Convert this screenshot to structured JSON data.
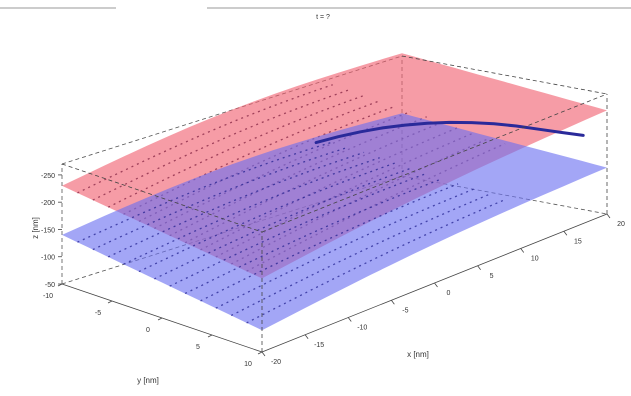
{
  "chart_data": {
    "type": "surface3d",
    "title": "t = ?",
    "xlabel": "y [nm]",
    "ylabel": "x [nm]",
    "zlabel": "z [nm]",
    "y_ticks": [
      "-10",
      "-5",
      "0",
      "5",
      "10"
    ],
    "x_ticks": [
      "-20",
      "-15",
      "-10",
      "-5",
      "0",
      "5",
      "10",
      "15",
      "20"
    ],
    "z_ticks": [
      "-50",
      "-100",
      "-150",
      "-200",
      "-250"
    ],
    "series": [
      {
        "name": "",
        "kind": "surface",
        "color": "#f06070",
        "opacity": 0.62,
        "z_corners": {
          "back_left": -230,
          "back_right": -275,
          "front_left": -185,
          "front_right": -240
        }
      },
      {
        "name": "",
        "kind": "surface",
        "color": "#6a70f0",
        "opacity": 0.62,
        "z_corners": {
          "back_left": -140,
          "back_right": -165,
          "front_left": -90,
          "front_right": -135
        }
      },
      {
        "name": "",
        "kind": "trajectory",
        "color": "#2a2a9a",
        "x": [
          -2,
          0,
          2,
          4,
          6,
          8,
          10,
          12,
          14,
          16,
          18,
          20,
          22
        ],
        "y": [
          0,
          0.5,
          1,
          1.5,
          2,
          2.5,
          3,
          3.5,
          4,
          4.5,
          5,
          5.5,
          6
        ],
        "z": [
          -270,
          -272,
          -272,
          -270,
          -266,
          -260,
          -252,
          -242,
          -230,
          -216,
          -200,
          -184,
          -168
        ]
      }
    ],
    "grid": false
  }
}
